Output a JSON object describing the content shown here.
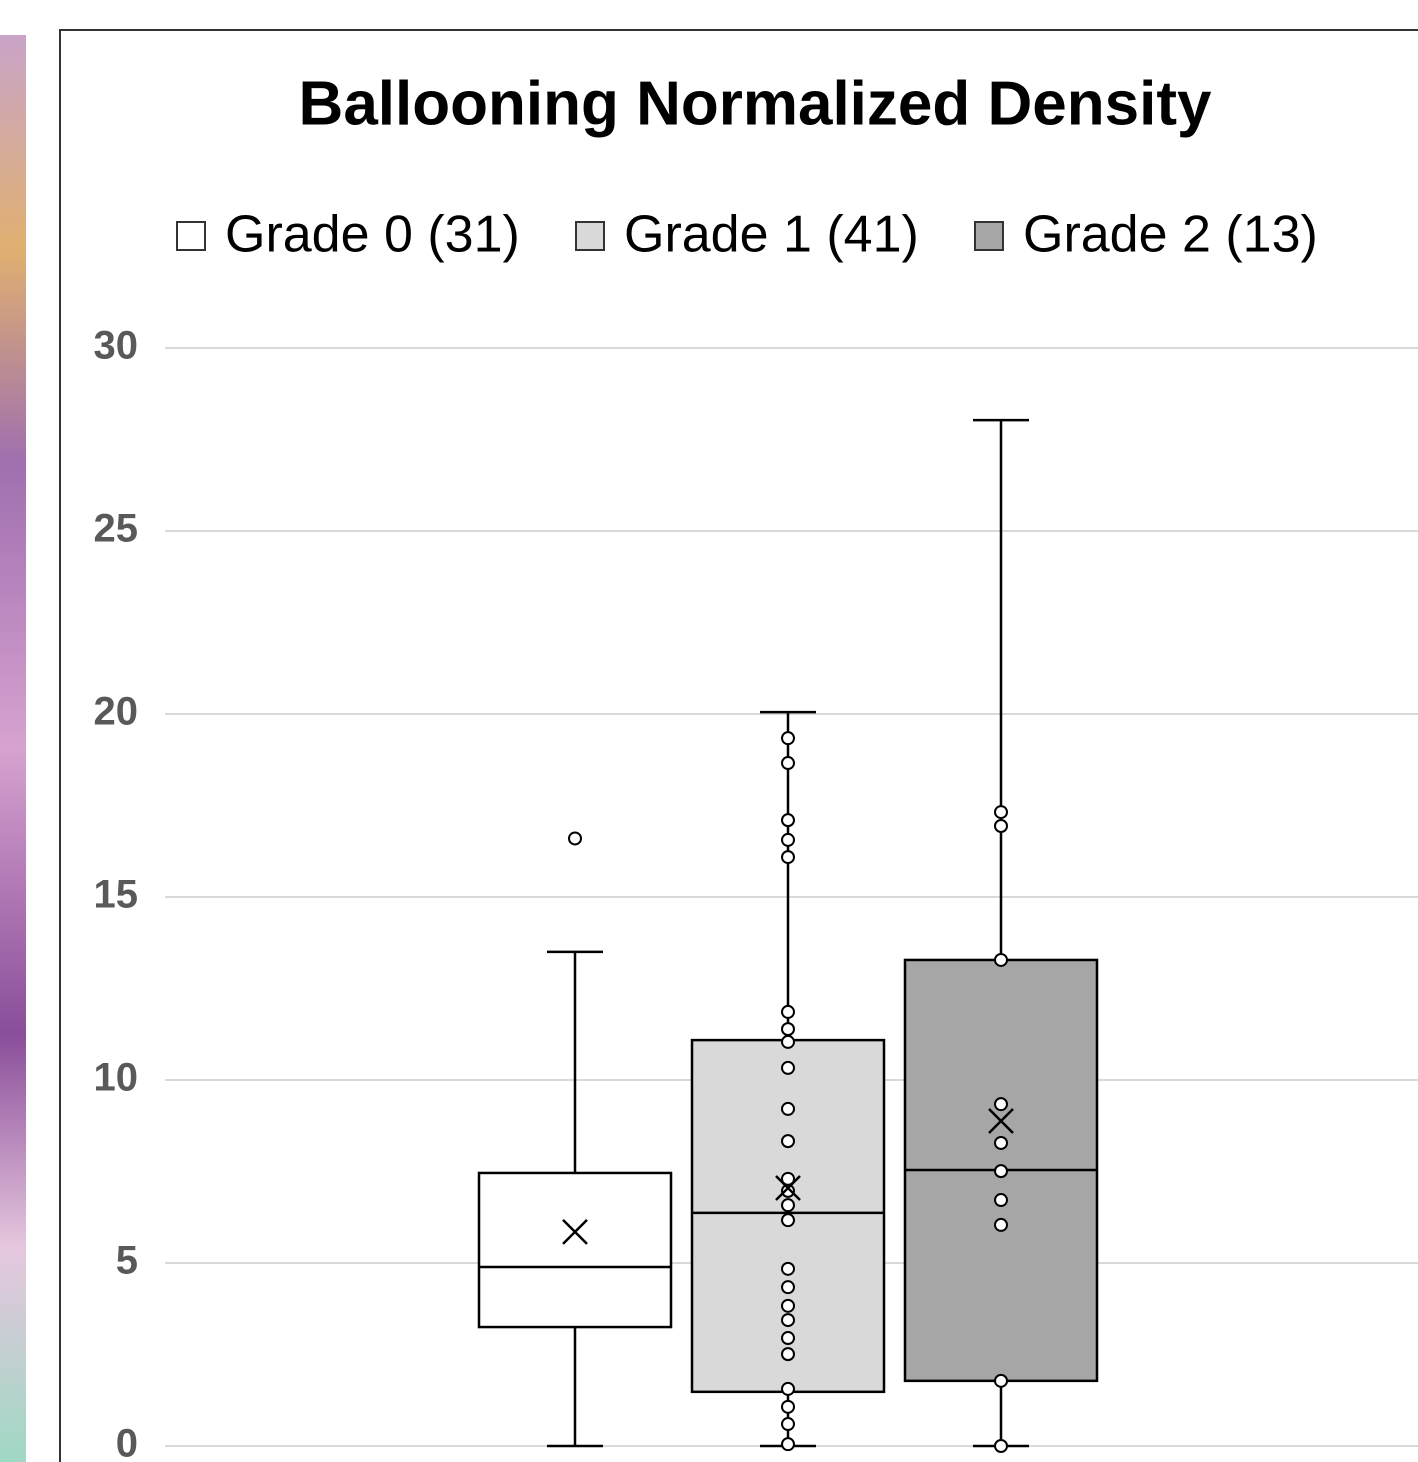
{
  "chart_data": {
    "type": "box",
    "title": "Ballooning Normalized Density",
    "ylim": [
      0,
      30
    ],
    "yticks": [
      0,
      5,
      10,
      15,
      20,
      25,
      30
    ],
    "grid": true,
    "legend": "top",
    "series": [
      {
        "name": "Grade 0 (31)",
        "color": "#ffffff",
        "whisker_low": 0,
        "q1": 3.25,
        "median": 4.89,
        "q3": 7.46,
        "whisker_high": 13.5,
        "mean": 5.85,
        "points": [
          16.6
        ]
      },
      {
        "name": "Grade 1 (41)",
        "color": "#d9d9d9",
        "whisker_low": 0,
        "q1": 1.48,
        "median": 6.37,
        "q3": 11.09,
        "whisker_high": 20.05,
        "mean": 7.05,
        "points": [
          19.34,
          18.66,
          17.1,
          16.56,
          16.09,
          11.86,
          11.39,
          11.04,
          10.33,
          9.21,
          8.33,
          7.3,
          6.97,
          6.58,
          6.17,
          4.84,
          4.34,
          3.83,
          3.44,
          2.95,
          2.51,
          1.56,
          1.07,
          0.6,
          0.05
        ]
      },
      {
        "name": "Grade 2 (13)",
        "color": "#a6a6a6",
        "whisker_low": 0,
        "q1": 1.78,
        "median": 7.54,
        "q3": 13.28,
        "whisker_high": 28.03,
        "mean": 8.88,
        "points": [
          17.32,
          16.94,
          13.28,
          9.34,
          8.28,
          7.51,
          6.72,
          6.04,
          1.78,
          0
        ]
      }
    ]
  }
}
